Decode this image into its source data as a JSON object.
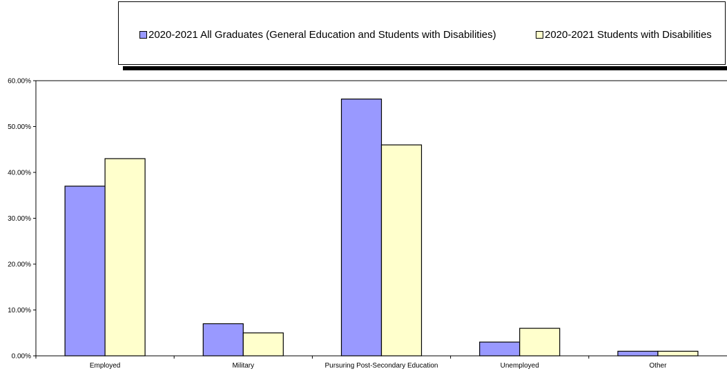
{
  "chart_data": {
    "type": "bar",
    "categories": [
      "Employed",
      "Military",
      "Pursuring Post-Secondary Education",
      "Unemployed",
      "Other"
    ],
    "series": [
      {
        "name": "2020-2021 All Graduates (General Education and Students with Disabilities)",
        "values": [
          0.37,
          0.07,
          0.56,
          0.03,
          0.01
        ],
        "color": "#9999ff"
      },
      {
        "name": "2020-2021 Students with Disabilities",
        "values": [
          0.43,
          0.05,
          0.46,
          0.06,
          0.01
        ],
        "color": "#ffffcc"
      }
    ],
    "yticks": [
      "0.00%",
      "10.00%",
      "20.00%",
      "30.00%",
      "40.00%",
      "50.00%",
      "60.00%"
    ],
    "ylim": [
      0,
      0.6
    ],
    "grid": false,
    "legend_position": "top"
  }
}
